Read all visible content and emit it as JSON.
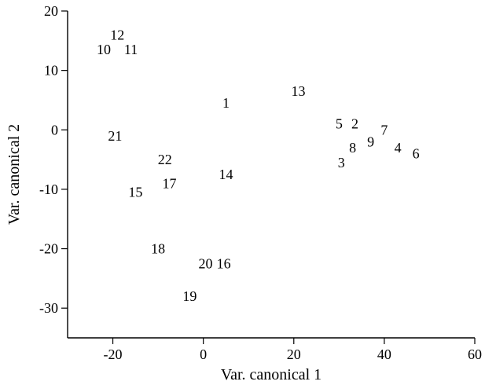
{
  "chart_data": {
    "type": "scatter",
    "title": "",
    "xlabel": "Var. canonical 1",
    "ylabel": "Var. canonical 2",
    "xlim": [
      -30,
      60
    ],
    "ylim": [
      -35,
      20
    ],
    "xticks": [
      -20,
      0,
      20,
      40,
      60
    ],
    "yticks": [
      20,
      10,
      0,
      -10,
      -20,
      -30
    ],
    "grid": false,
    "legend": "none",
    "points": [
      {
        "label": "1",
        "x": 5,
        "y": 4.5
      },
      {
        "label": "2",
        "x": 33.5,
        "y": 1
      },
      {
        "label": "3",
        "x": 30.5,
        "y": -5.5
      },
      {
        "label": "4",
        "x": 43,
        "y": -3
      },
      {
        "label": "5",
        "x": 30,
        "y": 1
      },
      {
        "label": "6",
        "x": 47,
        "y": -4
      },
      {
        "label": "7",
        "x": 40,
        "y": 0
      },
      {
        "label": "8",
        "x": 33,
        "y": -3
      },
      {
        "label": "9",
        "x": 37,
        "y": -2
      },
      {
        "label": "10",
        "x": -22,
        "y": 13.5
      },
      {
        "label": "11",
        "x": -16,
        "y": 13.5
      },
      {
        "label": "12",
        "x": -19,
        "y": 16
      },
      {
        "label": "13",
        "x": 21,
        "y": 6.5
      },
      {
        "label": "14",
        "x": 5,
        "y": -7.5
      },
      {
        "label": "15",
        "x": -15,
        "y": -10.5
      },
      {
        "label": "16",
        "x": 4.5,
        "y": -22.5
      },
      {
        "label": "17",
        "x": -7.5,
        "y": -9
      },
      {
        "label": "18",
        "x": -10,
        "y": -20
      },
      {
        "label": "19",
        "x": -3,
        "y": -28
      },
      {
        "label": "20",
        "x": 0.5,
        "y": -22.5
      },
      {
        "label": "21",
        "x": -19.5,
        "y": -1
      },
      {
        "label": "22",
        "x": -8.5,
        "y": -5
      }
    ]
  }
}
